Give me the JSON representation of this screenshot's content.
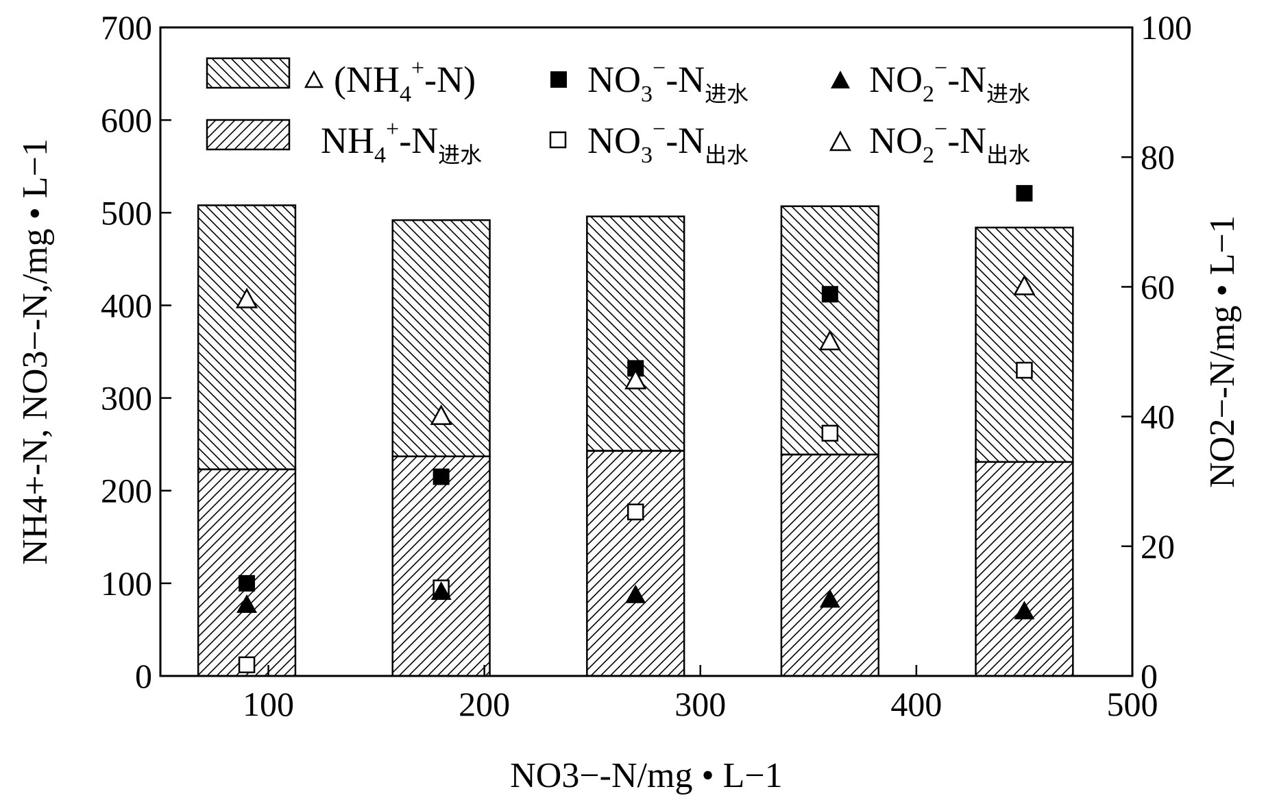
{
  "chart_data": {
    "type": "bar",
    "xlabel": "NO3−-N/mg • L−1",
    "ylabel_left": "NH4+-N, NO3−-N,/mg • L−1",
    "ylabel_right": "NO2−-N/mg • L−1",
    "xlim": [
      50,
      500
    ],
    "ylim_left": [
      0,
      700
    ],
    "ylim_right": [
      0,
      100
    ],
    "x_ticks": [
      100,
      200,
      300,
      400,
      500
    ],
    "y_ticks_left": [
      0,
      100,
      200,
      300,
      400,
      500,
      600,
      700
    ],
    "y_ticks_right": [
      0,
      20,
      40,
      60,
      80,
      100
    ],
    "x": [
      90,
      180,
      270,
      360,
      450
    ],
    "bar_width": 45,
    "series": [
      {
        "name": "NH4+-N进水",
        "axis": "left",
        "kind": "bar-lower",
        "pattern": "hatch-right",
        "values": [
          223,
          237,
          243,
          239,
          231
        ]
      },
      {
        "name": "(NH4+-N)",
        "axis": "left",
        "kind": "bar-total",
        "pattern": "hatch-left",
        "values": [
          508,
          492,
          496,
          507,
          484
        ]
      },
      {
        "name": "NO3−-N进水",
        "axis": "left",
        "kind": "marker",
        "marker": "filled-square",
        "values": [
          100,
          215,
          332,
          412,
          521
        ]
      },
      {
        "name": "NO3−-N出水",
        "axis": "left",
        "kind": "marker",
        "marker": "open-square",
        "values": [
          12,
          95,
          177,
          262,
          330
        ]
      },
      {
        "name": "NO2−-N进水",
        "axis": "right",
        "kind": "marker",
        "marker": "filled-triangle",
        "values": [
          11,
          13,
          12.5,
          11.8,
          10
        ]
      },
      {
        "name": "NO2−-N出水",
        "axis": "right",
        "kind": "marker",
        "marker": "open-triangle",
        "values": [
          58,
          40,
          45.5,
          51.5,
          60
        ]
      }
    ],
    "legend": {
      "placement": "top-left",
      "entries": [
        {
          "key": "bar-total",
          "text": "(NH",
          "sub": "4",
          "sup": "+",
          "tail": "-N)"
        },
        {
          "key": "marker-nitrate-in",
          "text": "NO",
          "sub": "3",
          "sup": "−",
          "tail": "-N",
          "tail_sub": "进水"
        },
        {
          "key": "marker-nitrite-in",
          "text": "NO",
          "sub": "2",
          "sup": "−",
          "tail": "-N",
          "tail_sub": "进水"
        },
        {
          "key": "bar-lower",
          "text": "NH",
          "sub": "4",
          "sup": "+",
          "tail": "-N",
          "tail_sub": "进水"
        },
        {
          "key": "marker-nitrate-out",
          "text": "NO",
          "sub": "3",
          "sup": "−",
          "tail": "-N",
          "tail_sub": "出水"
        },
        {
          "key": "marker-nitrite-out",
          "text": "NO",
          "sub": "2",
          "sup": "−",
          "tail": "-N",
          "tail_sub": "出水"
        }
      ]
    }
  }
}
